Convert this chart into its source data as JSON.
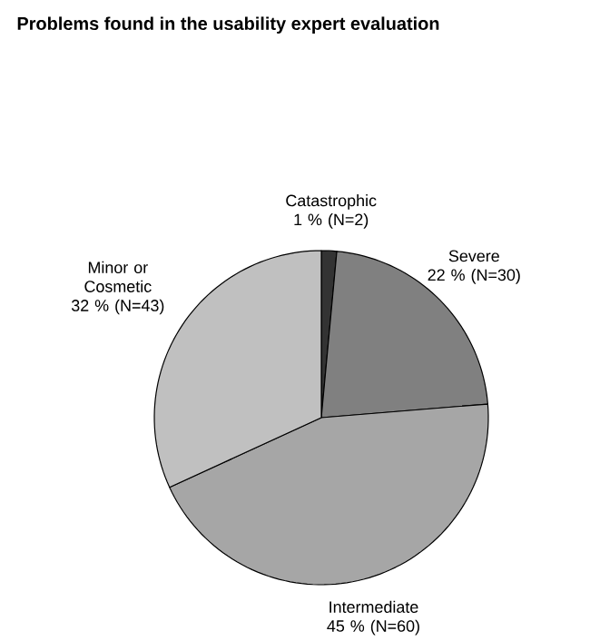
{
  "chart_data": {
    "type": "pie",
    "title": "Problems found in the usability expert evaluation",
    "categories": [
      "Catastrophic",
      "Severe",
      "Intermediate",
      "Minor or Cosmetic"
    ],
    "values": [
      2,
      30,
      60,
      43
    ],
    "value_labels": [
      "1 % (N=2)",
      "22 % (N=30)",
      "45 % (N=60)",
      "32 % (N=43)"
    ],
    "colors": [
      "#333333",
      "#808080",
      "#a6a6a6",
      "#c0c0c0"
    ]
  }
}
